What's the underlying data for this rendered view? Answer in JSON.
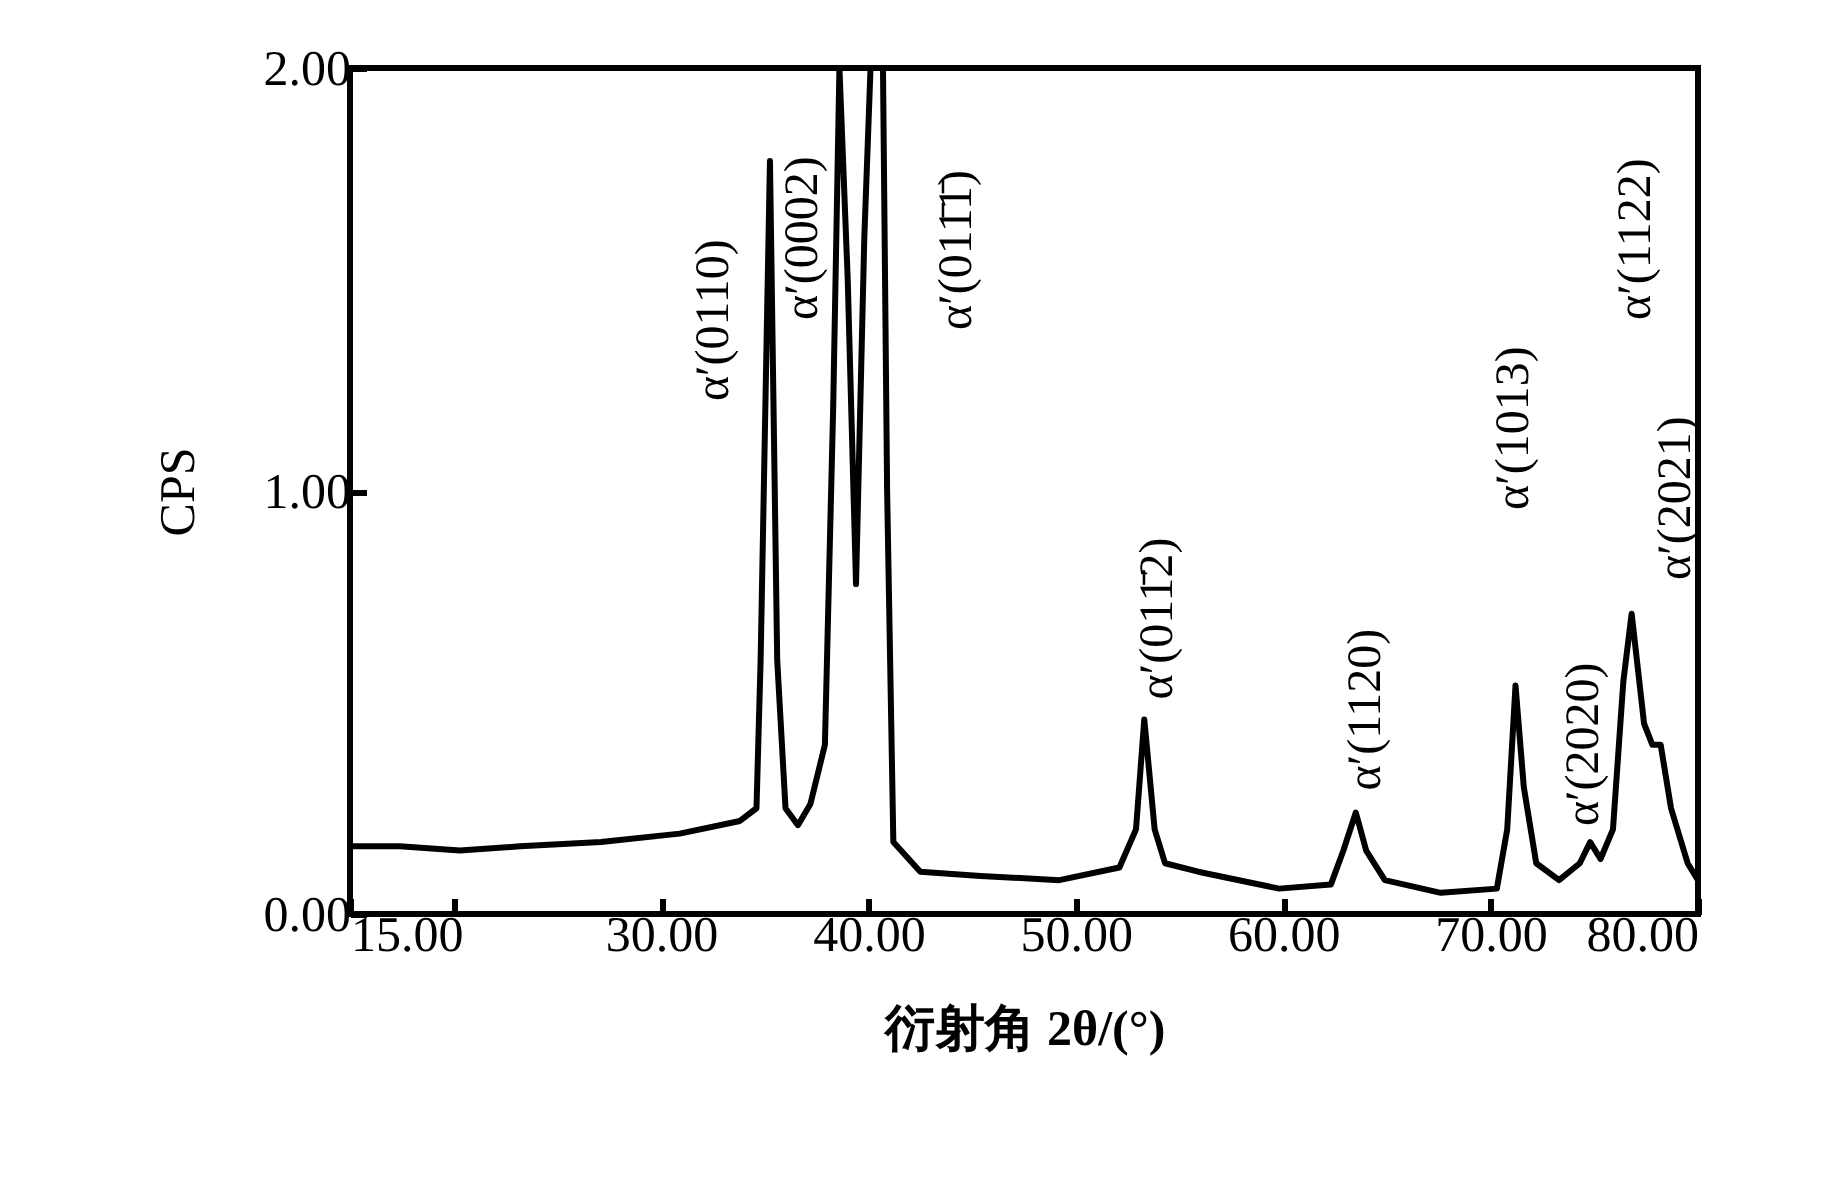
{
  "chart_data": {
    "type": "line",
    "xlabel": "衍射角 2θ/(°)",
    "ylabel": "CPS",
    "xlim": [
      15,
      80
    ],
    "ylim": [
      0,
      2
    ],
    "xticks": [
      {
        "value": 15,
        "label": "15.00"
      },
      {
        "value": 20,
        "label": null
      },
      {
        "value": 30,
        "label": "30.00"
      },
      {
        "value": 40,
        "label": "40.00"
      },
      {
        "value": 50,
        "label": "50.00"
      },
      {
        "value": 60,
        "label": "60.00"
      },
      {
        "value": 70,
        "label": "70.00"
      },
      {
        "value": 80,
        "label": "80.00"
      }
    ],
    "yticks": [
      {
        "value": 0,
        "label": "0.00"
      },
      {
        "value": 1,
        "label": "1.00"
      },
      {
        "value": 2,
        "label": "2.00"
      }
    ],
    "grid": false,
    "marker": "none",
    "line_style": "solid",
    "series": [
      {
        "color": "#000000",
        "x": [
          15.0,
          17.4,
          20.3,
          23.2,
          27.1,
          30.9,
          33.8,
          34.6,
          34.8,
          35.25,
          35.6,
          36.0,
          36.6,
          37.2,
          37.9,
          38.3,
          38.6,
          39.0,
          39.4,
          39.8,
          40.1,
          40.7,
          40.9,
          41.2,
          42.5,
          45.4,
          49.2,
          52.1,
          52.9,
          53.3,
          53.8,
          54.3,
          55.9,
          59.8,
          62.3,
          62.9,
          63.5,
          64.0,
          64.9,
          67.6,
          70.3,
          70.8,
          71.2,
          71.6,
          72.2,
          73.3,
          74.3,
          74.8,
          75.3,
          75.9,
          76.4,
          76.8,
          77.4,
          77.8,
          78.2,
          78.7,
          79.5,
          80.0
        ],
        "values": [
          0.16,
          0.16,
          0.15,
          0.16,
          0.17,
          0.19,
          0.22,
          0.25,
          0.6,
          1.78,
          0.6,
          0.25,
          0.21,
          0.26,
          0.4,
          1.2,
          2.0,
          1.5,
          0.78,
          1.6,
          2.0,
          2.0,
          1.0,
          0.17,
          0.1,
          0.09,
          0.08,
          0.11,
          0.2,
          0.46,
          0.2,
          0.12,
          0.1,
          0.06,
          0.07,
          0.15,
          0.24,
          0.15,
          0.08,
          0.05,
          0.06,
          0.2,
          0.54,
          0.3,
          0.12,
          0.08,
          0.12,
          0.17,
          0.13,
          0.2,
          0.55,
          0.71,
          0.45,
          0.4,
          0.4,
          0.25,
          0.12,
          0.08
        ]
      }
    ],
    "annotations": [
      {
        "text": "α′(0110)",
        "x": 35.25,
        "y": 1.78
      },
      {
        "text": "α′(0002)",
        "x": 38.6,
        "y": 2.0
      },
      {
        "text": "α′(011̄1̄)",
        "x": 40.7,
        "y": 2.0
      },
      {
        "text": "α′(011̄2)",
        "x": 53.3,
        "y": 0.46
      },
      {
        "text": "α′(1120)",
        "x": 63.5,
        "y": 0.24
      },
      "α′(1013)",
      {
        "text": "α′(2020)",
        "x": 74.8,
        "y": 0.17
      },
      "α′(1122)",
      "α′(2021)"
    ]
  }
}
